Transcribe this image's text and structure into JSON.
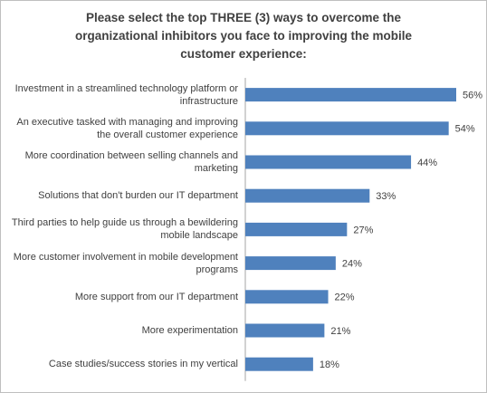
{
  "chart_data": {
    "type": "bar",
    "orientation": "horizontal",
    "title": "Please select the top THREE (3) ways to overcome the organizational inhibitors you face to improving the mobile customer experience:",
    "categories": [
      "Investment in a streamlined technology platform or infrastructure",
      "An executive tasked with managing and improving the overall customer experience",
      "More coordination between selling channels and marketing",
      "Solutions that don't burden our IT department",
      "Third parties to help guide us through a bewildering mobile landscape",
      "More customer involvement in mobile development programs",
      "More support from our IT department",
      "More experimentation",
      "Case studies/success stories in my vertical"
    ],
    "values": [
      56,
      54,
      44,
      33,
      27,
      24,
      22,
      21,
      18
    ],
    "value_labels": [
      "56%",
      "54%",
      "44%",
      "33%",
      "27%",
      "24%",
      "22%",
      "21%",
      "18%"
    ],
    "color": "#4f81bd"
  }
}
